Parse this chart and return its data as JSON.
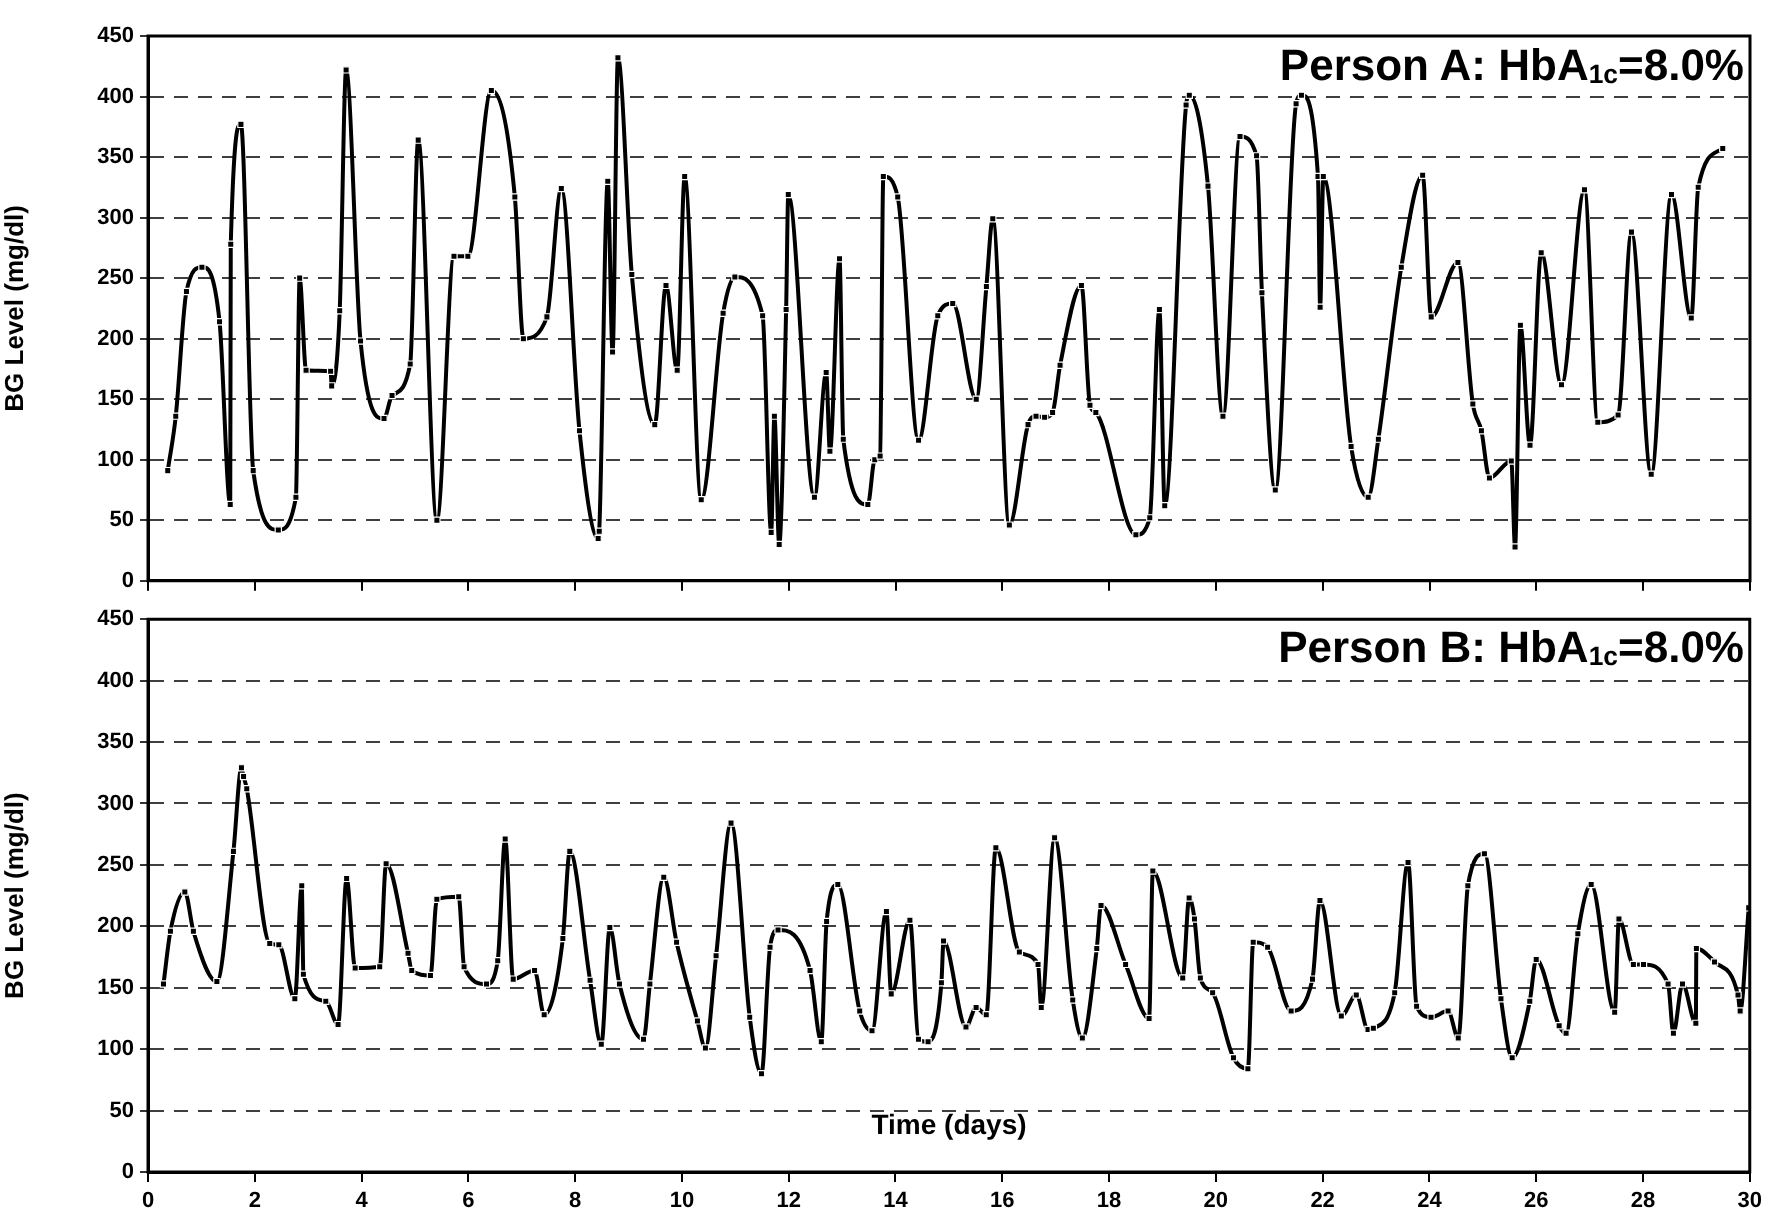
{
  "chart_data": [
    {
      "type": "line",
      "title": "Person A: HbA$_{1c}$=8.0%",
      "ylabel": "BG Level (mg/dl)",
      "xlim": [
        0,
        30
      ],
      "xticks": [
        0,
        2,
        4,
        6,
        8,
        10,
        12,
        14,
        16,
        18,
        20,
        22,
        24,
        26,
        28,
        30
      ],
      "ylim": [
        0,
        450
      ],
      "yticks": [
        0,
        50,
        100,
        150,
        200,
        250,
        300,
        350,
        400,
        450
      ],
      "grid": "y",
      "legend": false,
      "tick_labels": "y",
      "marker": "square",
      "line_style": "solid",
      "series": [
        {
          "color": "#000000",
          "x": [
            0.37,
            0.52,
            0.72,
            1.01,
            1.34,
            1.54,
            1.55,
            1.74,
            1.97,
            2.44,
            2.77,
            2.84,
            2.96,
            3.42,
            3.44,
            3.59,
            3.71,
            3.98,
            4.42,
            4.57,
            4.91,
            5.06,
            5.41,
            5.73,
            5.99,
            6.43,
            6.87,
            7.03,
            7.47,
            7.74,
            8.08,
            8.43,
            8.45,
            8.61,
            8.7,
            8.8,
            9.06,
            9.49,
            9.7,
            9.91,
            10.05,
            10.36,
            10.77,
            10.99,
            11.51,
            11.67,
            11.73,
            11.82,
            11.95,
            11.99,
            12.48,
            12.7,
            12.77,
            12.95,
            13.02,
            13.48,
            13.61,
            13.71,
            13.77,
            14.04,
            14.43,
            14.79,
            15.07,
            15.51,
            15.7,
            15.82,
            16.13,
            16.48,
            16.63,
            16.79,
            16.94,
            17.08,
            17.48,
            17.64,
            17.75,
            18.5,
            18.76,
            18.94,
            19.04,
            19.44,
            19.5,
            19.85,
            20.13,
            20.45,
            20.76,
            20.86,
            21.11,
            21.5,
            21.6,
            21.91,
            21.95,
            22.01,
            22.53,
            22.85,
            23.04,
            23.47,
            23.87,
            24.03,
            24.53,
            24.81,
            24.97,
            25.12,
            25.53,
            25.6,
            25.7,
            25.88,
            26.09,
            26.47,
            26.9,
            27.15,
            27.53,
            27.78,
            28.15,
            28.53,
            28.9,
            29.03,
            29.49
          ],
          "values": [
            91,
            136,
            239,
            259,
            214,
            63,
            278,
            377,
            91,
            42,
            69,
            250,
            174,
            173,
            161,
            223,
            422,
            198,
            134,
            153,
            179,
            364,
            50,
            268,
            268,
            405,
            317,
            200,
            218,
            324,
            124,
            35,
            41,
            330,
            189,
            432,
            253,
            129,
            244,
            174,
            334,
            67,
            221,
            251,
            219,
            40,
            136,
            30,
            224,
            319,
            69,
            172,
            107,
            266,
            117,
            63,
            100,
            103,
            334,
            317,
            116,
            219,
            229,
            150,
            243,
            299,
            46,
            129,
            136,
            135,
            139,
            178,
            244,
            145,
            139,
            38,
            52,
            224,
            62,
            393,
            401,
            326,
            136,
            367,
            351,
            238,
            75,
            394,
            401,
            334,
            226,
            334,
            111,
            69,
            117,
            259,
            335,
            218,
            263,
            146,
            124,
            85,
            99,
            28,
            211,
            112,
            271,
            162,
            323,
            131,
            137,
            288,
            88,
            319,
            217,
            325,
            357
          ]
        }
      ]
    },
    {
      "type": "line",
      "title": "Person B: HbA$_{1c}$=8.0%",
      "xlabel": "Time (days)",
      "ylabel": "BG Level (mg/dl)",
      "xlim": [
        0,
        30
      ],
      "xticks": [
        0,
        2,
        4,
        6,
        8,
        10,
        12,
        14,
        16,
        18,
        20,
        22,
        24,
        26,
        28,
        30
      ],
      "ylim": [
        0,
        450
      ],
      "yticks": [
        0,
        50,
        100,
        150,
        200,
        250,
        300,
        350,
        400,
        450
      ],
      "grid": "y",
      "legend": false,
      "marker": "square",
      "line_style": "solid",
      "series": [
        {
          "color": "#000000",
          "x": [
            0.29,
            0.42,
            0.69,
            0.85,
            1.29,
            1.6,
            1.75,
            1.79,
            1.85,
            2.28,
            2.45,
            2.75,
            2.88,
            2.91,
            3.33,
            3.56,
            3.72,
            3.88,
            4.34,
            4.46,
            4.87,
            4.94,
            5.29,
            5.41,
            5.82,
            5.92,
            6.34,
            6.55,
            6.69,
            6.84,
            7.24,
            7.42,
            7.77,
            7.9,
            8.28,
            8.49,
            8.65,
            8.83,
            9.28,
            9.4,
            9.66,
            9.9,
            10.29,
            10.44,
            10.64,
            10.92,
            11.27,
            11.49,
            11.65,
            11.8,
            12.4,
            12.61,
            12.71,
            12.92,
            13.33,
            13.56,
            13.83,
            13.92,
            14.27,
            14.43,
            14.61,
            14.86,
            14.9,
            15.32,
            15.51,
            15.7,
            15.88,
            16.32,
            16.67,
            16.73,
            16.98,
            17.32,
            17.5,
            17.77,
            17.85,
            18.31,
            18.75,
            18.82,
            19.38,
            19.5,
            19.6,
            19.71,
            19.94,
            20.33,
            20.6,
            20.7,
            20.97,
            21.41,
            21.81,
            21.95,
            22.35,
            22.63,
            22.85,
            22.95,
            23.35,
            23.6,
            23.76,
            24.03,
            24.35,
            24.54,
            24.72,
            25.03,
            25.34,
            25.55,
            25.88,
            26.0,
            26.43,
            26.56,
            26.78,
            27.03,
            27.47,
            27.55,
            27.82,
            28.01,
            28.47,
            28.57,
            28.74,
            28.99,
            29.0,
            29.34,
            29.78,
            29.82,
            29.98
          ],
          "values": [
            153,
            196,
            228,
            196,
            155,
            261,
            329,
            322,
            312,
            186,
            185,
            141,
            233,
            161,
            139,
            120,
            239,
            166,
            167,
            251,
            178,
            164,
            160,
            222,
            224,
            167,
            153,
            172,
            271,
            157,
            164,
            128,
            190,
            261,
            156,
            104,
            199,
            153,
            108,
            153,
            240,
            187,
            123,
            101,
            176,
            284,
            126,
            80,
            183,
            197,
            164,
            106,
            204,
            234,
            131,
            115,
            212,
            145,
            205,
            108,
            106,
            154,
            188,
            118,
            134,
            128,
            264,
            179,
            169,
            134,
            272,
            140,
            109,
            182,
            217,
            169,
            125,
            245,
            158,
            223,
            206,
            158,
            146,
            93,
            84,
            187,
            183,
            131,
            157,
            221,
            127,
            144,
            116,
            117,
            146,
            252,
            135,
            126,
            131,
            109,
            233,
            259,
            141,
            93,
            139,
            173,
            119,
            113,
            194,
            234,
            130,
            206,
            169,
            169,
            153,
            113,
            153,
            121,
            182,
            171,
            144,
            131,
            215
          ]
        }
      ]
    }
  ]
}
